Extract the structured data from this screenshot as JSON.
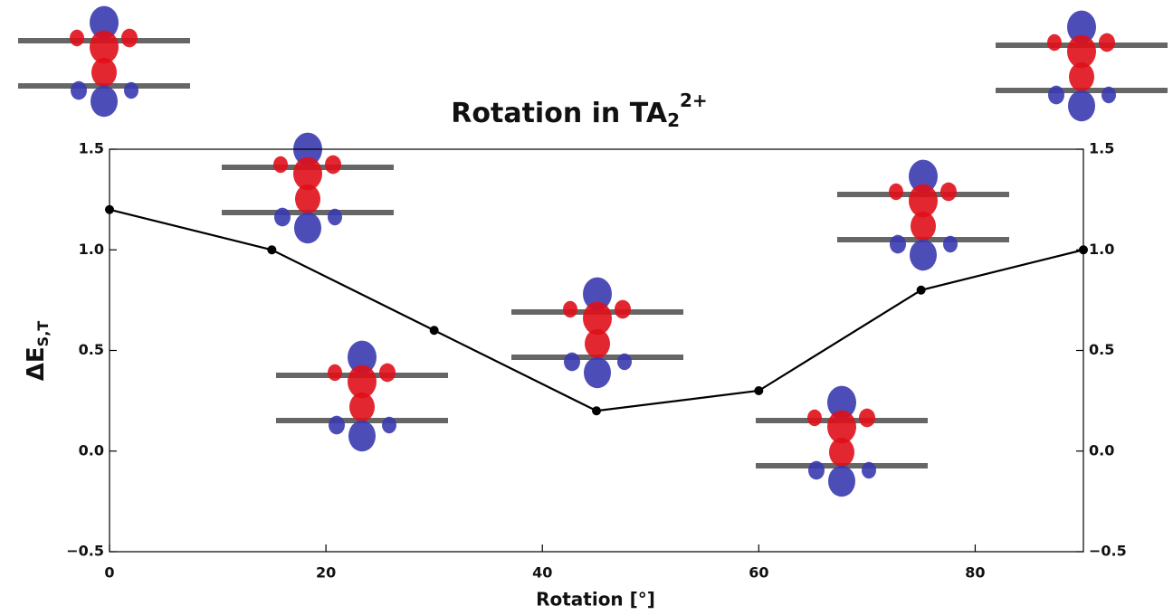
{
  "chart_data": {
    "type": "line",
    "title": {
      "main": "Rotation in TA",
      "sub": "2",
      "sup": "2+"
    },
    "x_label": "Rotation [°]",
    "y_label": {
      "main": "ΔE",
      "sub": "S,T"
    },
    "x": [
      0,
      15,
      30,
      45,
      60,
      75,
      90
    ],
    "series": [
      {
        "color": "#000000",
        "values": [
          1.2,
          1.0,
          0.6,
          0.2,
          0.3,
          0.8,
          1.0
        ]
      }
    ],
    "xlim": [
      0,
      90
    ],
    "xticks": [
      0,
      20,
      40,
      60,
      80
    ],
    "ylim": [
      -0.5,
      1.5
    ],
    "yticks": [
      {
        "value": -0.5,
        "label": "−0.5"
      },
      {
        "value": 0,
        "label": "0.0"
      },
      {
        "value": 0.5,
        "label": "0.5"
      },
      {
        "value": 1,
        "label": "1.0"
      },
      {
        "value": 1.5,
        "label": "1.5"
      }
    ]
  }
}
